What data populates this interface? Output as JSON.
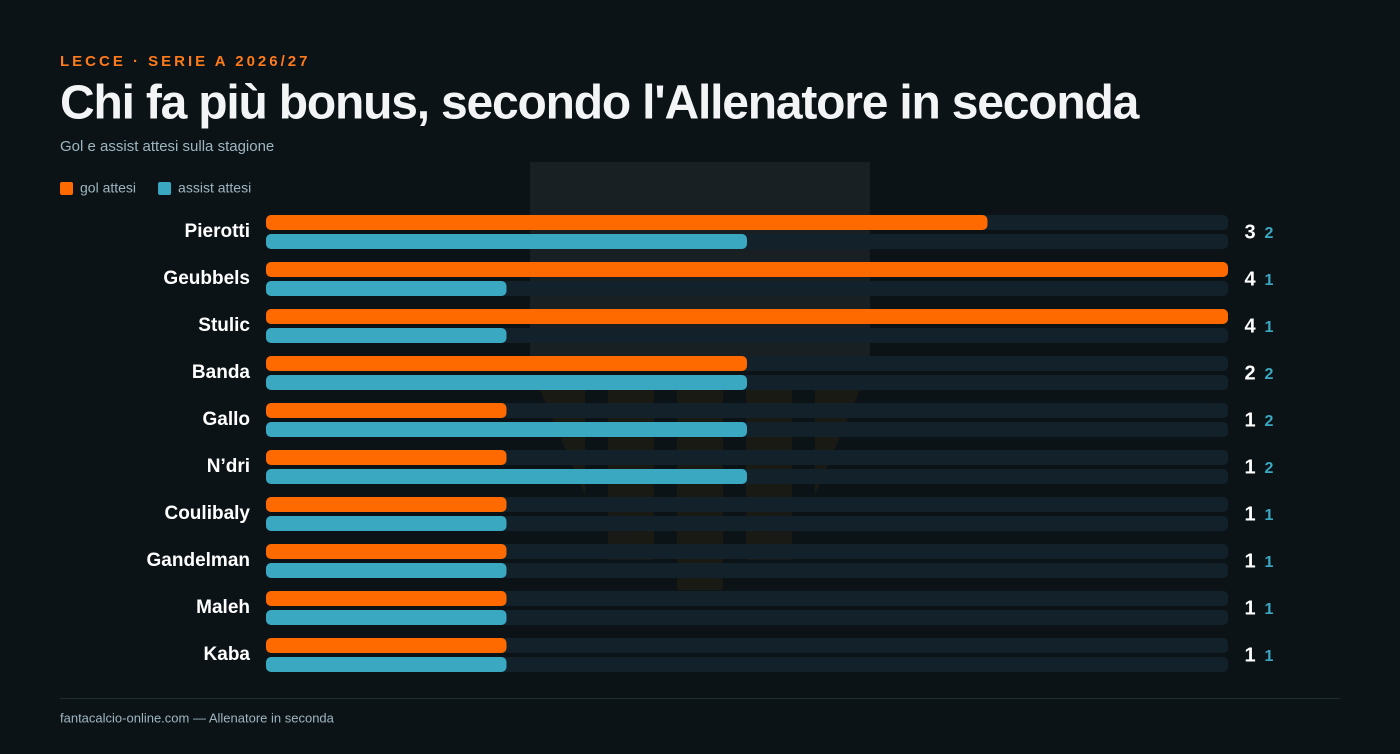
{
  "chart_data": {
    "type": "bar",
    "orientation": "horizontal",
    "kicker": "LECCE · SERIE A 2026/27",
    "title": "Chi fa più bonus, secondo l'Allenatore in seconda",
    "subtitle": "Gol e assist attesi sulla stagione",
    "categories": [
      "Pierotti",
      "Geubbels",
      "Stulic",
      "Banda",
      "Gallo",
      "N’dri",
      "Coulibaly",
      "Gandelman",
      "Maleh",
      "Kaba"
    ],
    "series": [
      {
        "name": "gol attesi",
        "color": "#ff6a00",
        "values": [
          3,
          4,
          4,
          2,
          1,
          1,
          1,
          1,
          1,
          1
        ]
      },
      {
        "name": "assist attesi",
        "color": "#3aa8c1",
        "values": [
          2,
          1,
          1,
          2,
          2,
          2,
          1,
          1,
          1,
          1
        ]
      }
    ],
    "xlim": [
      0,
      4
    ],
    "footer": "fantacalcio-online.com — Allenatore in seconda"
  }
}
